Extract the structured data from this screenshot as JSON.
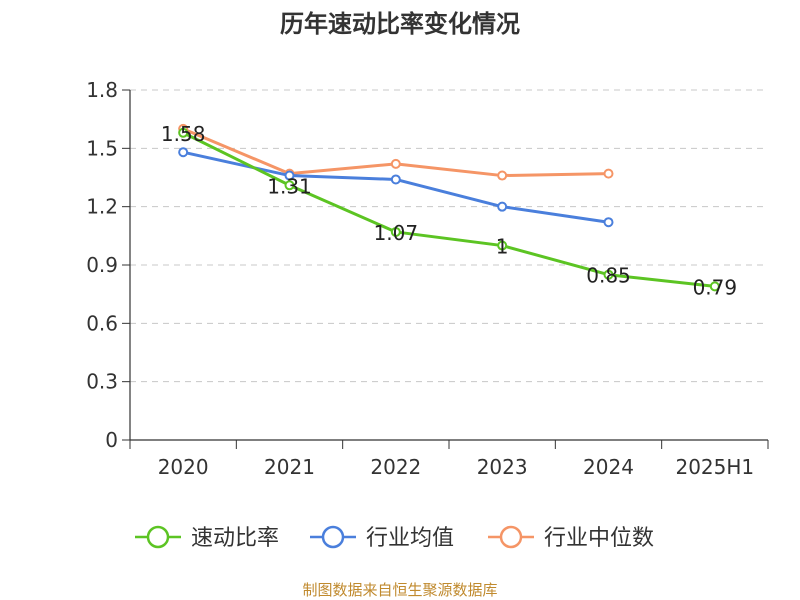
{
  "chart_data": {
    "type": "line",
    "title": "历年速动比率变化情况",
    "categories": [
      "2020",
      "2021",
      "2022",
      "2023",
      "2024",
      "2025H1"
    ],
    "y_ticks": [
      "0",
      "0.3",
      "0.6",
      "0.9",
      "1.2",
      "1.5",
      "1.8"
    ],
    "ylim": [
      0,
      1.8
    ],
    "grid": true,
    "legend_position": "bottom",
    "series": [
      {
        "name": "速动比率",
        "color": "#5cc423",
        "values": [
          1.58,
          1.31,
          1.07,
          1.0,
          0.85,
          0.79
        ],
        "labels": [
          "1.58",
          "1.31",
          "1.07",
          "1",
          "0.85",
          "0.79"
        ]
      },
      {
        "name": "行业均值",
        "color": "#4a7fdc",
        "values": [
          1.48,
          1.36,
          1.34,
          1.2,
          1.12,
          null
        ]
      },
      {
        "name": "行业中位数",
        "color": "#f59566",
        "values": [
          1.6,
          1.37,
          1.42,
          1.36,
          1.37,
          null
        ]
      }
    ]
  },
  "source": "制图数据来自恒生聚源数据库"
}
